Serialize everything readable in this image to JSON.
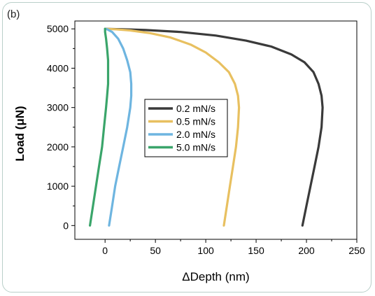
{
  "panel_label": "(b)",
  "chart_data": {
    "type": "line",
    "xlabel": "ΔDepth (nm)",
    "ylabel": "Load (μN)",
    "xlim": [
      -30,
      250
    ],
    "ylim": [
      -350,
      5200
    ],
    "xticks": [
      0,
      50,
      100,
      150,
      200,
      250
    ],
    "yticks": [
      0,
      1000,
      2000,
      3000,
      4000,
      5000
    ],
    "xtick_labels": [
      "0",
      "50",
      "100",
      "150",
      "200",
      "250"
    ],
    "ytick_labels": [
      "0",
      "1000",
      "2000",
      "3000",
      "4000",
      "5000"
    ],
    "legend_position": "center",
    "grid": false,
    "series": [
      {
        "name": "0.2 mN/s",
        "color": "#3a3a3a",
        "points": [
          [
            196,
            0
          ],
          [
            200,
            500
          ],
          [
            204,
            1000
          ],
          [
            208,
            1500
          ],
          [
            212,
            2000
          ],
          [
            215,
            2500
          ],
          [
            216,
            3000
          ],
          [
            215,
            3300
          ],
          [
            212,
            3600
          ],
          [
            207,
            3900
          ],
          [
            198,
            4150
          ],
          [
            185,
            4350
          ],
          [
            165,
            4550
          ],
          [
            140,
            4700
          ],
          [
            110,
            4830
          ],
          [
            75,
            4920
          ],
          [
            40,
            4970
          ],
          [
            15,
            4992
          ],
          [
            0,
            5000
          ]
        ]
      },
      {
        "name": "0.5 mN/s",
        "color": "#e8c060",
        "points": [
          [
            118,
            0
          ],
          [
            121,
            500
          ],
          [
            124,
            1000
          ],
          [
            127,
            1500
          ],
          [
            130,
            2000
          ],
          [
            132,
            2500
          ],
          [
            133,
            3000
          ],
          [
            132,
            3300
          ],
          [
            129,
            3600
          ],
          [
            123,
            3900
          ],
          [
            113,
            4150
          ],
          [
            100,
            4400
          ],
          [
            85,
            4600
          ],
          [
            65,
            4780
          ],
          [
            45,
            4890
          ],
          [
            25,
            4960
          ],
          [
            10,
            4990
          ],
          [
            0,
            5000
          ]
        ]
      },
      {
        "name": "2.0 mN/s",
        "color": "#6eb5e0",
        "points": [
          [
            4,
            0
          ],
          [
            7,
            500
          ],
          [
            10,
            1000
          ],
          [
            14,
            1500
          ],
          [
            18,
            2000
          ],
          [
            22,
            2500
          ],
          [
            25,
            3000
          ],
          [
            26,
            3300
          ],
          [
            26,
            3600
          ],
          [
            25,
            3900
          ],
          [
            22,
            4200
          ],
          [
            18,
            4500
          ],
          [
            13,
            4750
          ],
          [
            7,
            4920
          ],
          [
            2,
            4990
          ],
          [
            0,
            5000
          ]
        ]
      },
      {
        "name": "5.0 mN/s",
        "color": "#3aa56a",
        "points": [
          [
            -15,
            0
          ],
          [
            -12,
            500
          ],
          [
            -9,
            1000
          ],
          [
            -6,
            1500
          ],
          [
            -3,
            2000
          ],
          [
            -1,
            2500
          ],
          [
            1,
            3000
          ],
          [
            2,
            3300
          ],
          [
            3,
            3600
          ],
          [
            3,
            3900
          ],
          [
            3,
            4200
          ],
          [
            2,
            4500
          ],
          [
            1,
            4750
          ],
          [
            0,
            4920
          ],
          [
            0,
            5000
          ]
        ]
      }
    ]
  }
}
